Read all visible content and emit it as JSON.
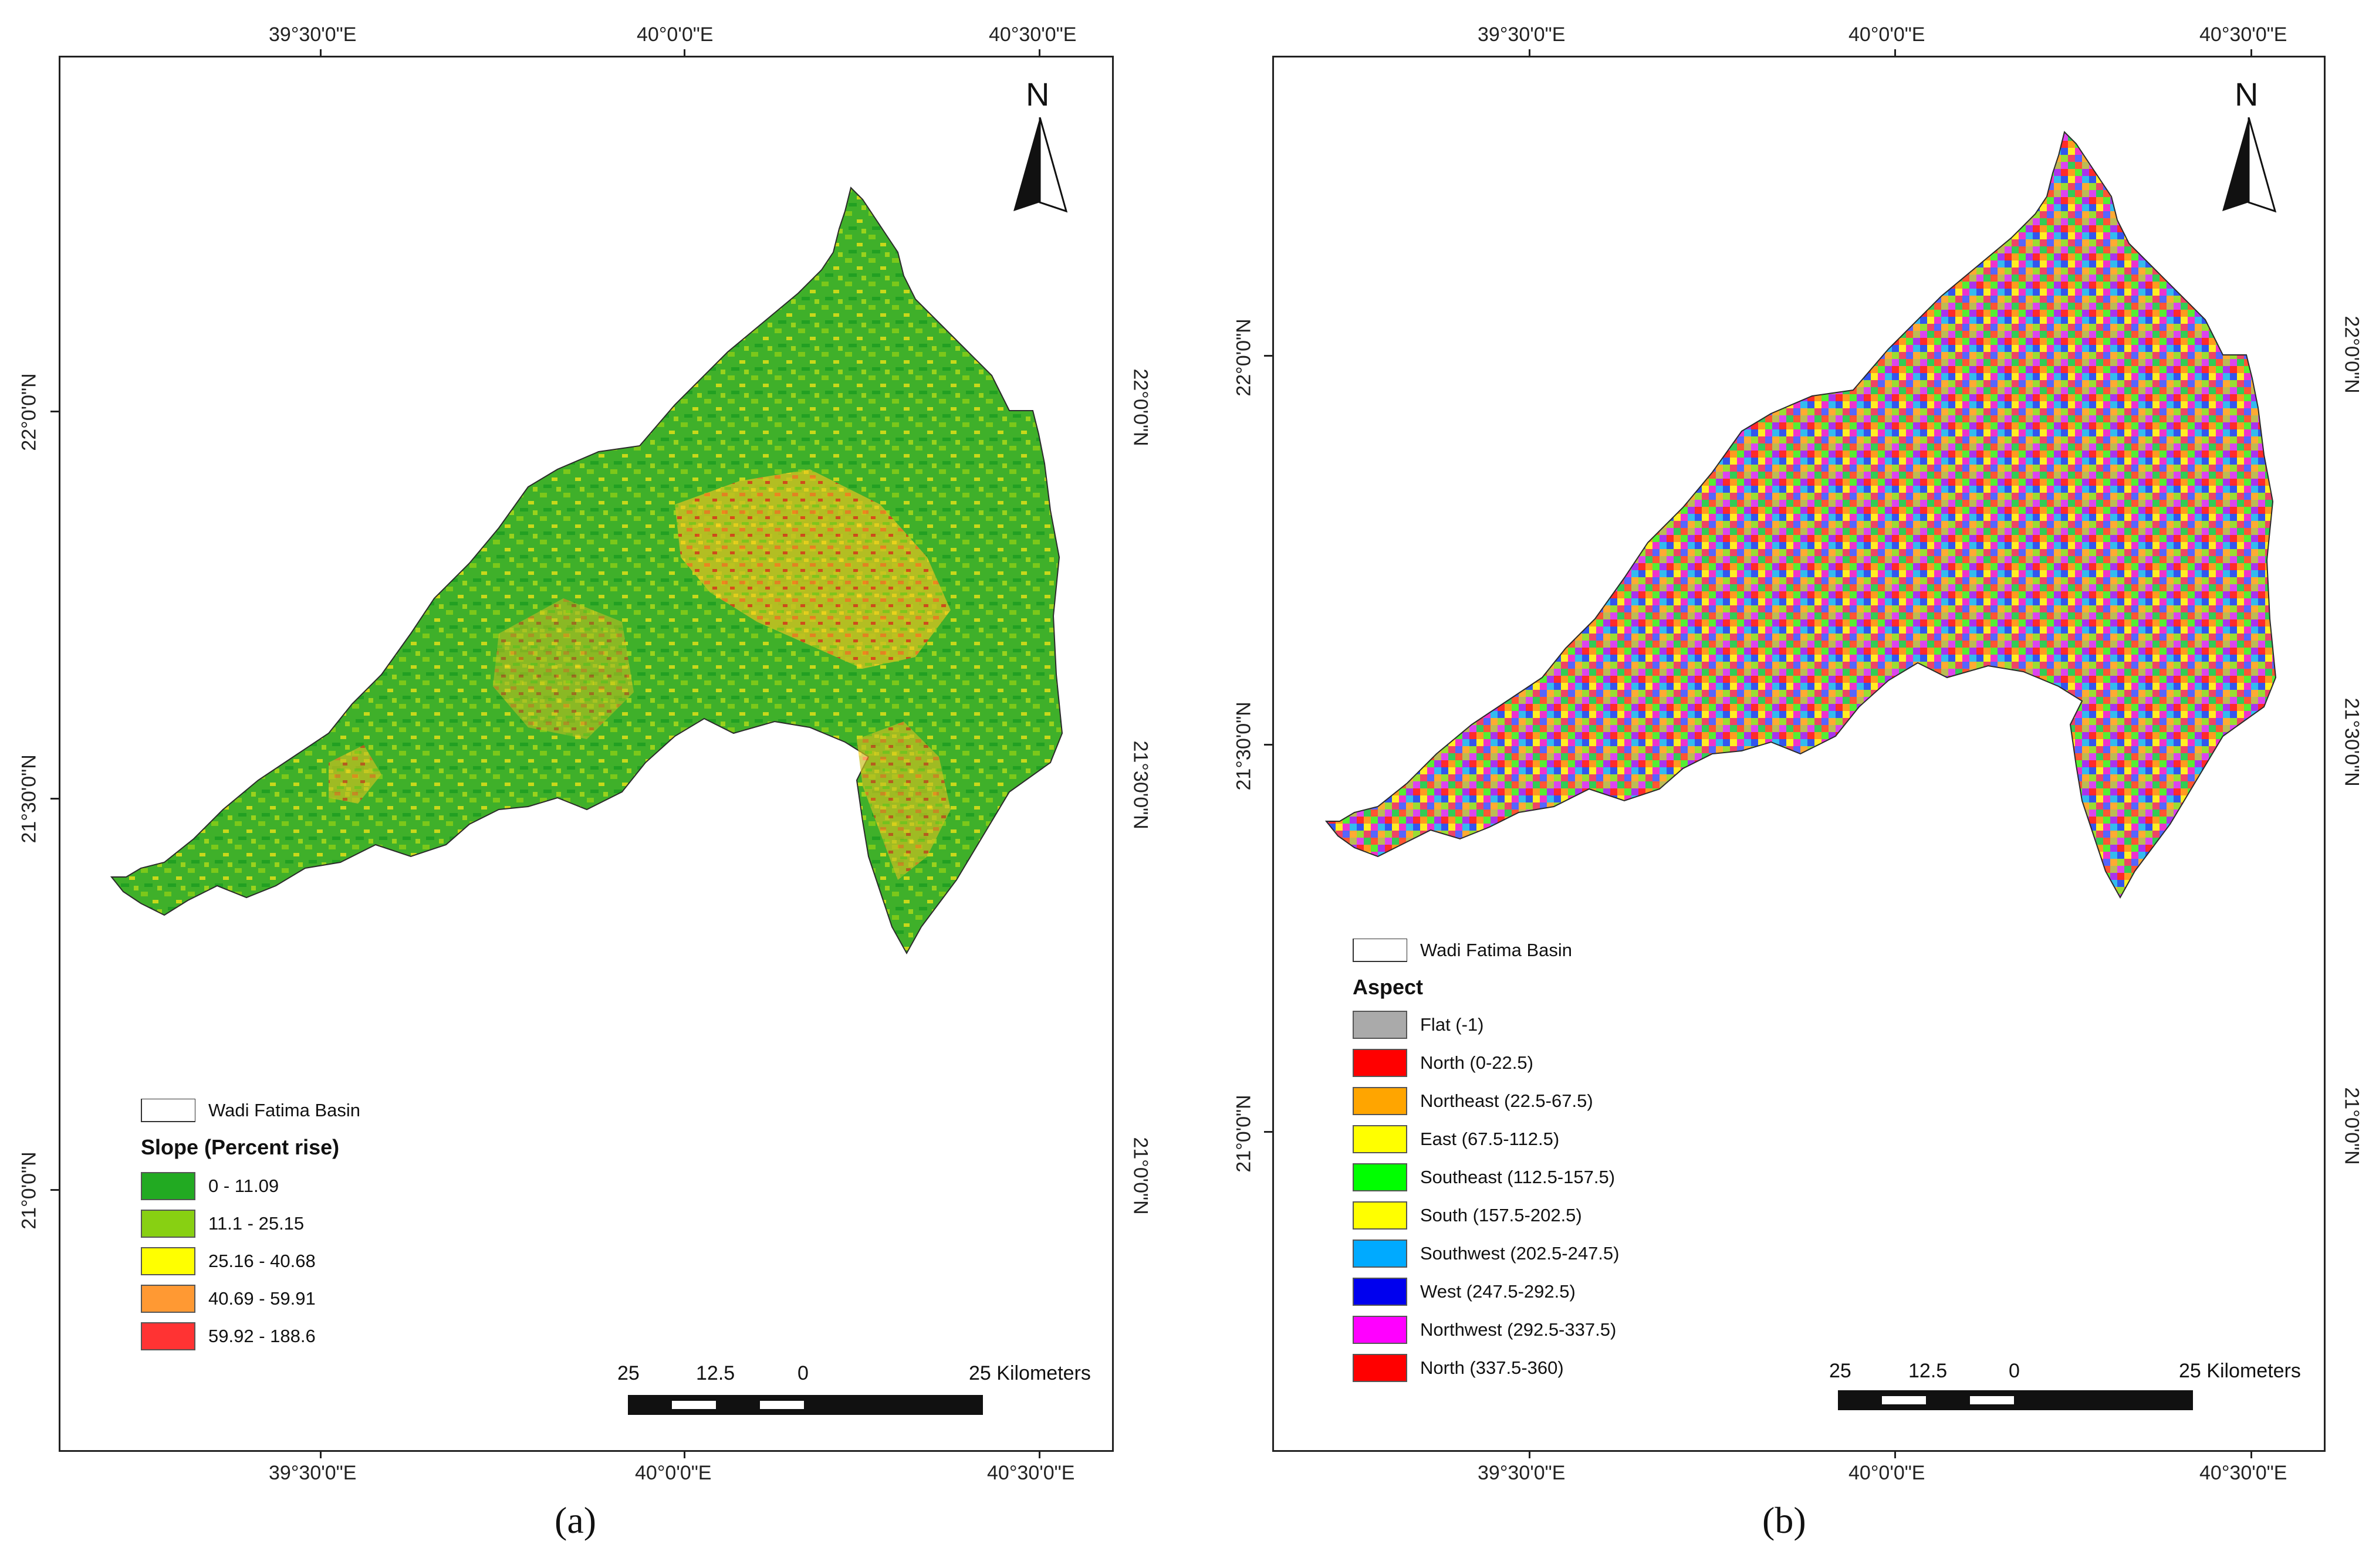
{
  "panels": [
    {
      "id": "a",
      "top_ticks": [
        "39°30'0\"E",
        "40°0'0\"E",
        "40°30'0\"E"
      ],
      "bottom_ticks": [
        "39°30'0\"E",
        "40°0'0\"E",
        "40°30'0\"E"
      ],
      "left_ticks": [
        "22°0'0\"N",
        "21°30'0\"N",
        "21°0'0\"N"
      ],
      "right_ticks": [
        "22°0'0\"N",
        "21°30'0\"N",
        "21°0'0\"N"
      ],
      "north_label": "N",
      "basin_label": "Wadi Fatima Basin",
      "legend_title": "Slope (Percent rise)",
      "legend": [
        {
          "label": "0 - 11.09",
          "color": "#22aa22"
        },
        {
          "label": "11.1 - 25.15",
          "color": "#88d012"
        },
        {
          "label": "25.16 - 40.68",
          "color": "#ffff00"
        },
        {
          "label": "40.69 - 59.91",
          "color": "#ff9933"
        },
        {
          "label": "59.92 - 188.6",
          "color": "#ff3333"
        }
      ],
      "scale": {
        "l25": "25",
        "l12": "12.5",
        "l0": "0",
        "lkm": "25 Kilometers"
      },
      "caption": "(a)"
    },
    {
      "id": "b",
      "top_ticks": [
        "39°30'0\"E",
        "40°0'0\"E",
        "40°30'0\"E"
      ],
      "bottom_ticks": [
        "39°30'0\"E",
        "40°0'0\"E",
        "40°30'0\"E"
      ],
      "left_ticks": [
        "22°0'0\"N",
        "21°30'0\"N",
        "21°0'0\"N"
      ],
      "right_ticks": [
        "22°0'0\"N",
        "21°30'0\"N",
        "21°0'0\"N"
      ],
      "north_label": "N",
      "basin_label": "Wadi Fatima Basin",
      "legend_title": "Aspect",
      "legend": [
        {
          "label": "Flat (-1)",
          "color": "#aaaaaa"
        },
        {
          "label": "North (0-22.5)",
          "color": "#ff0000"
        },
        {
          "label": "Northeast (22.5-67.5)",
          "color": "#ffa500"
        },
        {
          "label": "East (67.5-112.5)",
          "color": "#ffff00"
        },
        {
          "label": "Southeast (112.5-157.5)",
          "color": "#00ff00"
        },
        {
          "label": "South (157.5-202.5)",
          "color": "#ffff00"
        },
        {
          "label": "Southwest (202.5-247.5)",
          "color": "#00aaff"
        },
        {
          "label": "West (247.5-292.5)",
          "color": "#0000ee"
        },
        {
          "label": "Northwest (292.5-337.5)",
          "color": "#ff00ff"
        },
        {
          "label": "North (337.5-360)",
          "color": "#ff0000"
        }
      ],
      "scale": {
        "l25": "25",
        "l12": "12.5",
        "l0": "0",
        "lkm": "25 Kilometers"
      },
      "caption": "(b)"
    }
  ]
}
